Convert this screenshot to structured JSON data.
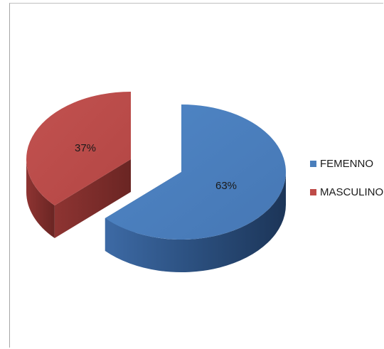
{
  "chart_data": {
    "type": "pie",
    "three_d": true,
    "exploded": true,
    "categories": [
      "FEMENNO",
      "MASCULINO"
    ],
    "values": [
      63,
      37
    ],
    "data_labels": [
      "63%",
      "37%"
    ],
    "colors": [
      "#4a7ebb",
      "#be4b48"
    ],
    "side_colors": [
      "#2c4e7a",
      "#7a2b29"
    ],
    "legend": {
      "position": "right",
      "entries": [
        "FEMENNO",
        "MASCULINO"
      ]
    },
    "title": ""
  }
}
